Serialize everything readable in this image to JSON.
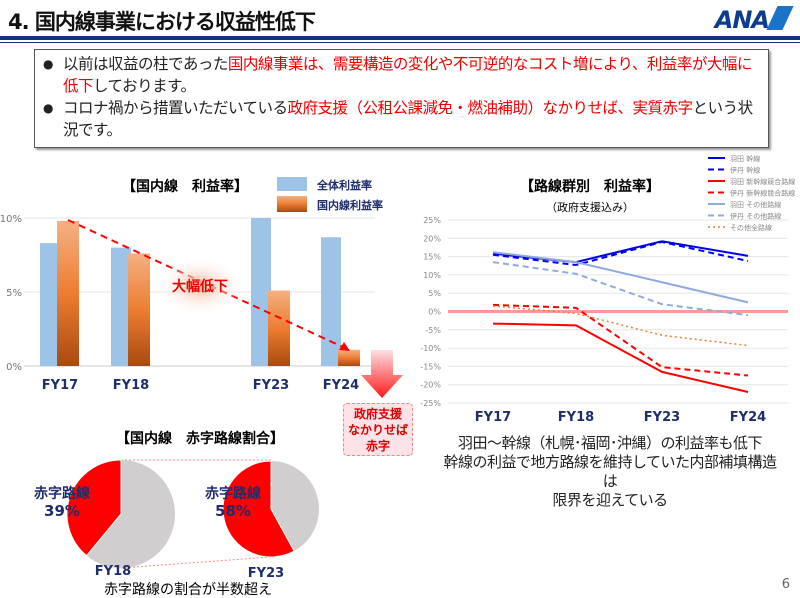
{
  "header": {
    "title": "4. 国内線事業における収益性低下",
    "logo": "ANA",
    "page_number": "6"
  },
  "summary": {
    "bullet1": {
      "pre": "以前は収益の柱であった",
      "red": "国内線事業は、需要構造の変化や不可逆的なコスト増により、利益率が大幅に低下",
      "post": "しております。"
    },
    "bullet2": {
      "pre": "コロナ禍から措置いただいている",
      "red": "政府支援（公租公課減免・燃油補助）なかりせば、実質赤字",
      "post": "という状況です。"
    }
  },
  "colors": {
    "overall": "#9dc3e6",
    "domestic": "#e8803a",
    "red": "#ff0000",
    "blue": "#0000ee",
    "light_blue": "#8faadc",
    "orange": "#ed7d31",
    "navy": "#1f2d6b"
  },
  "chart_data": [
    {
      "type": "bar",
      "title": "【国内線　利益率】",
      "categories": [
        "FY17",
        "FY18",
        "FY23",
        "FY24"
      ],
      "series": [
        {
          "name": "全体利益率",
          "values": [
            8.3,
            8.0,
            10.0,
            8.7
          ]
        },
        {
          "name": "国内線利益率",
          "values": [
            9.8,
            7.6,
            5.1,
            1.1
          ]
        }
      ],
      "yticks": [
        "0%",
        "5%",
        "10%"
      ],
      "ylim": [
        0,
        10
      ],
      "legend": "top-right",
      "annotation": "大幅低下",
      "callout": {
        "line1": "政府支援",
        "line2": "なかりせば",
        "line3": "赤字"
      }
    },
    {
      "type": "line",
      "title": "【路線群別　利益率】",
      "subtitle": "（政府支援込み）",
      "categories": [
        "FY17",
        "FY18",
        "FY23",
        "FY24"
      ],
      "ylim": [
        -25,
        25
      ],
      "yticks": [
        "25%",
        "20%",
        "15%",
        "10%",
        "5%",
        "0%",
        "-5%",
        "-10%",
        "-15%",
        "-20%",
        "-25%"
      ],
      "legend": "top-right",
      "grid": true,
      "series": [
        {
          "name": "羽田 幹線",
          "values": [
            15.8,
            13.5,
            19.2,
            15.2
          ],
          "color": "#0000ee",
          "style": "solid"
        },
        {
          "name": "伊丹 幹線",
          "values": [
            15.5,
            12.7,
            19.0,
            13.8
          ],
          "color": "#0000ee",
          "style": "dash"
        },
        {
          "name": "羽田 新幹線競合路線",
          "values": [
            -3.3,
            -3.8,
            -16.5,
            -22.0
          ],
          "color": "#ff0000",
          "style": "solid"
        },
        {
          "name": "伊丹 新幹線競合路線",
          "values": [
            1.8,
            1.0,
            -15.2,
            -17.5
          ],
          "color": "#ff0000",
          "style": "dash"
        },
        {
          "name": "羽田 その他路線",
          "values": [
            16.2,
            13.5,
            8.0,
            2.5
          ],
          "color": "#8faadc",
          "style": "solid"
        },
        {
          "name": "伊丹 その他路線",
          "values": [
            13.5,
            10.3,
            2.0,
            -1.0
          ],
          "color": "#8faadc",
          "style": "dash"
        },
        {
          "name": "その他全路線",
          "values": [
            1.5,
            -0.5,
            -6.5,
            -9.3
          ],
          "color": "#ed7d31",
          "style": "dot"
        }
      ],
      "note": [
        "羽田～幹線（札幌･福岡･沖縄）の利益率も低下",
        "幹線の利益で地方路線を維持していた内部補填構造は",
        "限界を迎えている"
      ]
    },
    {
      "type": "pie",
      "title": "【国内線　赤字路線割合】",
      "pies": [
        {
          "category": "FY18",
          "label": "赤字路線",
          "value": 39,
          "value_label": "39%"
        },
        {
          "category": "FY23",
          "label": "赤字路線",
          "value": 58,
          "value_label": "58%"
        }
      ],
      "caption": "赤字路線の割合が半数超え"
    }
  ]
}
